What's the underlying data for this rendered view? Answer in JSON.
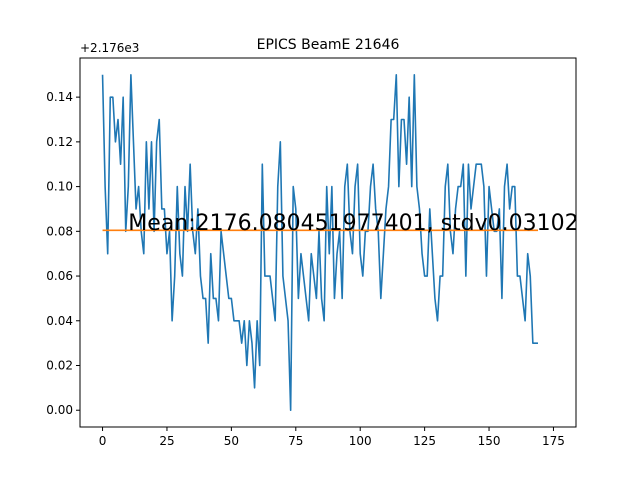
{
  "chart_data": {
    "type": "line",
    "title": "EPICS BeamE 21646",
    "xlabel": "",
    "ylabel": "",
    "offset_label": "+2.176e3",
    "xlim": [
      -8.75,
      183.75
    ],
    "ylim": [
      -0.0075,
      0.1575
    ],
    "xticks": [
      0,
      25,
      50,
      75,
      100,
      125,
      150,
      175
    ],
    "yticks": [
      0.0,
      0.02,
      0.04,
      0.06,
      0.08,
      0.1,
      0.12,
      0.14
    ],
    "ytick_labels": [
      "0.00",
      "0.02",
      "0.04",
      "0.06",
      "0.08",
      "0.10",
      "0.12",
      "0.14"
    ],
    "grid": false,
    "annotation": {
      "text": "Mean:2176.080451977401, stdv0.03102",
      "x": 10,
      "y": 0.0805
    },
    "series": [
      {
        "color": "#1f77b4",
        "values": [
          0.15,
          0.1,
          0.07,
          0.14,
          0.14,
          0.12,
          0.13,
          0.11,
          0.14,
          0.08,
          0.1,
          0.15,
          0.12,
          0.09,
          0.1,
          0.08,
          0.07,
          0.12,
          0.09,
          0.12,
          0.08,
          0.12,
          0.13,
          0.09,
          0.09,
          0.07,
          0.08,
          0.04,
          0.06,
          0.1,
          0.07,
          0.06,
          0.1,
          0.08,
          0.11,
          0.08,
          0.07,
          0.09,
          0.06,
          0.05,
          0.05,
          0.03,
          0.07,
          0.05,
          0.05,
          0.04,
          0.08,
          0.07,
          0.06,
          0.05,
          0.05,
          0.04,
          0.04,
          0.04,
          0.03,
          0.04,
          0.02,
          0.04,
          0.03,
          0.01,
          0.04,
          0.02,
          0.11,
          0.06,
          0.06,
          0.06,
          0.05,
          0.04,
          0.1,
          0.12,
          0.06,
          0.05,
          0.04,
          0.0,
          0.1,
          0.09,
          0.05,
          0.07,
          0.06,
          0.05,
          0.04,
          0.07,
          0.06,
          0.05,
          0.08,
          0.05,
          0.04,
          0.1,
          0.07,
          0.1,
          0.05,
          0.07,
          0.08,
          0.05,
          0.1,
          0.11,
          0.08,
          0.07,
          0.1,
          0.11,
          0.07,
          0.06,
          0.08,
          0.08,
          0.1,
          0.11,
          0.09,
          0.08,
          0.05,
          0.07,
          0.09,
          0.1,
          0.13,
          0.13,
          0.15,
          0.1,
          0.13,
          0.13,
          0.11,
          0.14,
          0.1,
          0.15,
          0.1,
          0.09,
          0.07,
          0.06,
          0.06,
          0.09,
          0.07,
          0.05,
          0.04,
          0.06,
          0.06,
          0.1,
          0.11,
          0.08,
          0.07,
          0.09,
          0.1,
          0.1,
          0.11,
          0.06,
          0.11,
          0.09,
          0.1,
          0.11,
          0.11,
          0.11,
          0.1,
          0.06,
          0.1,
          0.09,
          0.08,
          0.08,
          0.09,
          0.05,
          0.1,
          0.11,
          0.09,
          0.1,
          0.1,
          0.06,
          0.06,
          0.05,
          0.04,
          0.07,
          0.06,
          0.03,
          0.03,
          0.03
        ]
      },
      {
        "color": "#ff7f0e",
        "values": [
          0.080451977401,
          0.080451977401
        ]
      }
    ]
  }
}
